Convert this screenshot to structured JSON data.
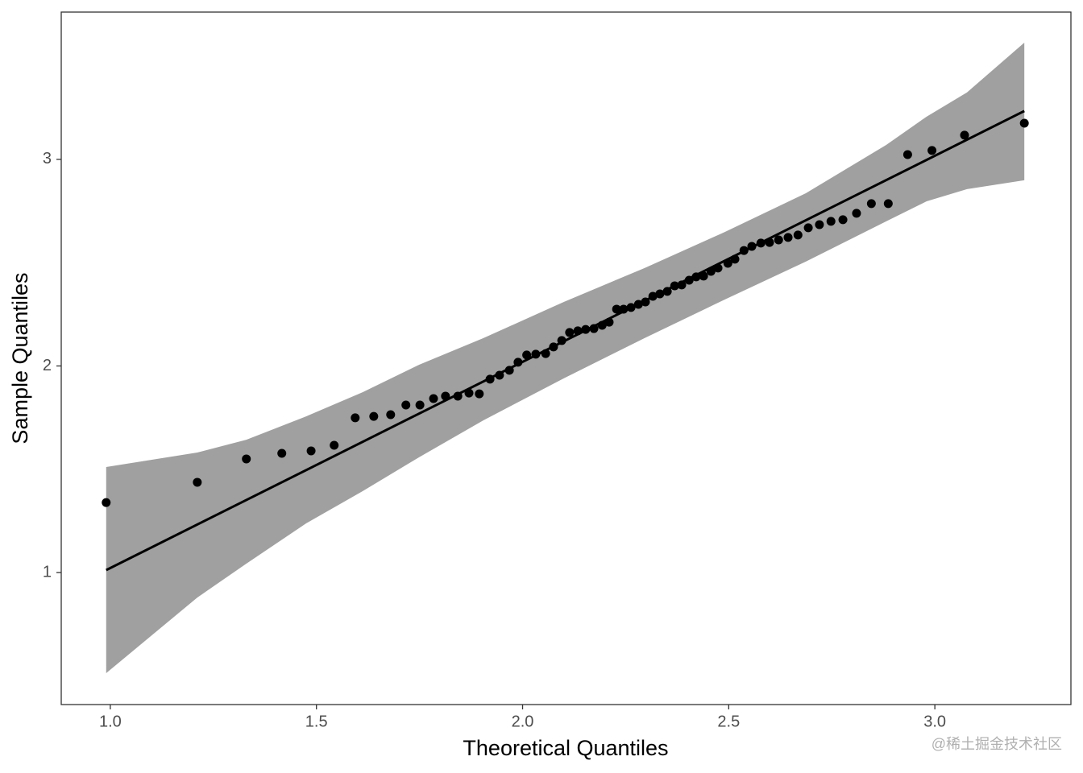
{
  "chart_data": {
    "type": "scatter",
    "xlabel": "Theoretical Quantiles",
    "ylabel": "Sample Quantiles",
    "watermark": "@稀土掘金技术社区",
    "xlim": [
      0.881,
      3.33
    ],
    "ylim": [
      0.361,
      3.713
    ],
    "xticks": [
      {
        "value": 1,
        "label": "1.0"
      },
      1.5,
      {
        "value": 2,
        "label": "2.0"
      },
      2.5,
      {
        "value": 3,
        "label": "3.0"
      }
    ],
    "yticks": [
      1,
      2,
      3
    ],
    "color": "#000000",
    "x": [
      0.99,
      1.211,
      1.33,
      1.416,
      1.487,
      1.543,
      1.594,
      1.639,
      1.68,
      1.717,
      1.751,
      1.784,
      1.813,
      1.843,
      1.87,
      1.895,
      1.921,
      1.944,
      1.968,
      1.989,
      2.01,
      2.032,
      2.056,
      2.075,
      2.095,
      2.114,
      2.134,
      2.153,
      2.173,
      2.193,
      2.21,
      2.228,
      2.245,
      2.263,
      2.281,
      2.298,
      2.316,
      2.333,
      2.351,
      2.369,
      2.386,
      2.404,
      2.421,
      2.439,
      2.457,
      2.474,
      2.498,
      2.515,
      2.537,
      2.556,
      2.578,
      2.599,
      2.621,
      2.644,
      2.668,
      2.693,
      2.72,
      2.748,
      2.777,
      2.81,
      2.846,
      2.887,
      2.934,
      2.993,
      3.072,
      3.217
    ],
    "values": [
      1.339,
      1.437,
      1.55,
      1.577,
      1.589,
      1.616,
      1.749,
      1.756,
      1.764,
      1.811,
      1.811,
      1.842,
      1.854,
      1.854,
      1.869,
      1.865,
      1.936,
      1.955,
      1.979,
      2.018,
      2.053,
      2.057,
      2.06,
      2.092,
      2.123,
      2.162,
      2.17,
      2.177,
      2.181,
      2.197,
      2.212,
      2.275,
      2.275,
      2.283,
      2.298,
      2.31,
      2.337,
      2.349,
      2.361,
      2.388,
      2.392,
      2.415,
      2.431,
      2.435,
      2.458,
      2.474,
      2.497,
      2.517,
      2.559,
      2.579,
      2.595,
      2.598,
      2.61,
      2.622,
      2.634,
      2.669,
      2.684,
      2.7,
      2.708,
      2.739,
      2.786,
      2.786,
      3.023,
      3.043,
      3.117,
      3.175
    ],
    "line": {
      "color": "#000000",
      "x": [
        0.99,
        3.217
      ],
      "values": [
        1.012,
        3.234
      ]
    },
    "band": {
      "color": "#a0a0a0",
      "x": [
        0.99,
        1.211,
        1.33,
        1.475,
        1.612,
        1.749,
        1.905,
        2.1,
        2.296,
        2.491,
        2.687,
        2.882,
        2.98,
        3.078,
        3.217
      ],
      "upper": [
        1.511,
        1.581,
        1.643,
        1.756,
        1.873,
        2.006,
        2.135,
        2.31,
        2.474,
        2.649,
        2.836,
        3.07,
        3.207,
        3.324,
        3.565
      ],
      "lower": [
        0.513,
        0.879,
        1.043,
        1.238,
        1.394,
        1.558,
        1.737,
        1.94,
        2.135,
        2.322,
        2.505,
        2.7,
        2.797,
        2.856,
        2.899
      ]
    }
  }
}
